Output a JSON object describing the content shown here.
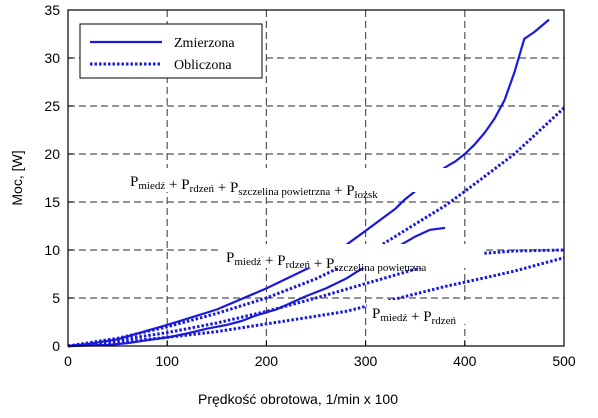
{
  "chart_data": {
    "type": "line",
    "title": "",
    "xlabel": "Prędkość obrotowa, 1/min x 100",
    "ylabel": "Moc, [W]",
    "xlim": [
      0,
      500
    ],
    "ylim": [
      0,
      35
    ],
    "xticks": [
      0,
      100,
      200,
      300,
      400,
      500
    ],
    "yticks": [
      0,
      5,
      10,
      15,
      20,
      25,
      30,
      35
    ],
    "grid": true,
    "legend_position": "top-left",
    "legend": [
      {
        "label": "Zmierzona",
        "style": "solid"
      },
      {
        "label": "Obliczona",
        "style": "dotted"
      }
    ],
    "colors": {
      "series": "#1a1adb",
      "grid": "#555555"
    },
    "series": [
      {
        "name": "Zmierzona",
        "style": "solid",
        "x": [
          0,
          20,
          50,
          80,
          100,
          150,
          200,
          230,
          260,
          280,
          300,
          330,
          340,
          380,
          390,
          400,
          410,
          420,
          430,
          440,
          450,
          460,
          470,
          485
        ],
        "y": [
          0,
          0.2,
          0.7,
          1.6,
          2.2,
          3.8,
          6.0,
          7.5,
          9.0,
          10.5,
          12.0,
          14.3,
          15.3,
          18.6,
          19.2,
          20.0,
          21.0,
          22.2,
          23.7,
          25.6,
          28.5,
          32.0,
          32.7,
          34.0
        ]
      },
      {
        "name": "Zmierzona",
        "style": "solid",
        "x": [
          0,
          40,
          60,
          80,
          100,
          120,
          140,
          150,
          160,
          175,
          190,
          210,
          240,
          260,
          280,
          300,
          330,
          350,
          365,
          380
        ],
        "y": [
          0,
          0.1,
          0.3,
          0.6,
          0.9,
          1.3,
          1.8,
          2.0,
          2.2,
          2.6,
          3.2,
          3.8,
          5.2,
          6.0,
          7.0,
          8.3,
          10.2,
          11.4,
          12.1,
          12.3
        ]
      },
      {
        "name": "Obliczona",
        "style": "dotted",
        "x": [
          0,
          50,
          100,
          150,
          200,
          250,
          300,
          350,
          380,
          400,
          450,
          500
        ],
        "y": [
          0,
          0.8,
          2.0,
          3.4,
          5.0,
          7.0,
          9.5,
          12.7,
          14.6,
          16.1,
          20.0,
          24.8
        ]
      },
      {
        "name": "Obliczona",
        "style": "dotted",
        "x": [
          0,
          50,
          100,
          150,
          200,
          250,
          300,
          330,
          350,
          370,
          400,
          450,
          500
        ],
        "y": [
          0,
          0.6,
          1.4,
          2.4,
          3.6,
          5.0,
          6.5,
          7.4,
          8.0,
          8.7,
          9.5,
          9.9,
          10.0
        ]
      },
      {
        "name": "Obliczona",
        "style": "dotted",
        "x": [
          0,
          50,
          100,
          150,
          200,
          250,
          280,
          380,
          420,
          450,
          500
        ],
        "y": [
          0,
          0.4,
          0.9,
          1.5,
          2.3,
          3.1,
          3.6,
          6.2,
          7.1,
          7.8,
          9.2
        ]
      }
    ],
    "annotations": [
      {
        "parts": [
          {
            "text": "P",
            "sub": "miedź"
          },
          {
            "text": " + "
          },
          {
            "text": "P",
            "sub": "rdzeń"
          },
          {
            "text": " + "
          },
          {
            "text": "P",
            "sub": "szczelina powietrzna"
          },
          {
            "text": " + "
          },
          {
            "text": "P",
            "sub": "łożsk"
          }
        ]
      },
      {
        "parts": [
          {
            "text": "P",
            "sub": "miedź"
          },
          {
            "text": " + "
          },
          {
            "text": "P",
            "sub": "rdzeń"
          },
          {
            "text": " + "
          },
          {
            "text": "P",
            "sub": "szczelina powietrzna"
          }
        ]
      },
      {
        "parts": [
          {
            "text": "P",
            "sub": "miedź"
          },
          {
            "text": " + "
          },
          {
            "text": "P",
            "sub": "rdzeń"
          }
        ]
      }
    ]
  }
}
